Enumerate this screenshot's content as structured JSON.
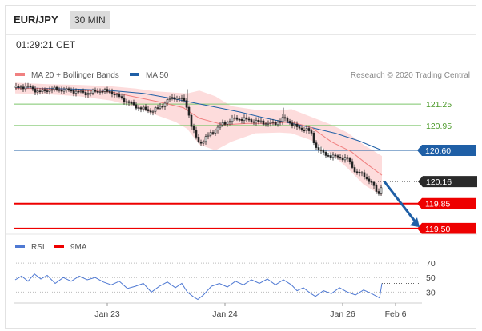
{
  "header": {
    "pair": "EUR/JPY",
    "timeframe": "30 MIN"
  },
  "time": "01:29:21 CET",
  "colors": {
    "ma20": "#f08080",
    "ma50": "#1f5fa6",
    "band": "#fdd8d8",
    "greenLine": "#7cc56a",
    "greenText": "#4c9a2a",
    "support": "#ee0000",
    "arrow": "#1f5fa6",
    "candle": "#222222",
    "rsi": "#4f79d3",
    "ma9": "#ee0000"
  },
  "chart_data": [
    {
      "type": "line",
      "title": "",
      "legend": [
        {
          "name": "MA 20 + Bollinger Bands",
          "color": "#f08080"
        },
        {
          "name": "MA 50",
          "color": "#1f5fa6"
        }
      ],
      "source": "Research © 2020 Trading Central",
      "ylim": [
        119.42,
        121.6
      ],
      "levels": [
        {
          "value": 121.25,
          "label": "121.25",
          "style": "green-line"
        },
        {
          "value": 120.95,
          "label": "120.95",
          "style": "green-line"
        },
        {
          "value": 120.6,
          "label": "120.60",
          "style": "pivot"
        },
        {
          "value": 120.16,
          "label": "120.16",
          "style": "last-price"
        },
        {
          "value": 119.85,
          "label": "119.85",
          "style": "support"
        },
        {
          "value": 119.5,
          "label": "119.50",
          "style": "support"
        }
      ],
      "series": [
        {
          "name": "Price",
          "points": [
            [
              0,
              121.48
            ],
            [
              15,
              121.5
            ],
            [
              30,
              121.42
            ],
            [
              45,
              121.46
            ],
            [
              60,
              121.45
            ],
            [
              75,
              121.43
            ],
            [
              90,
              121.4
            ],
            [
              105,
              121.44
            ],
            [
              120,
              121.42
            ],
            [
              130,
              121.35
            ],
            [
              140,
              121.28
            ],
            [
              150,
              121.22
            ],
            [
              160,
              121.18
            ],
            [
              170,
              121.15
            ],
            [
              180,
              121.2
            ],
            [
              190,
              121.3
            ],
            [
              200,
              121.35
            ],
            [
              210,
              121.31
            ],
            [
              215,
              121.2
            ],
            [
              220,
              120.95
            ],
            [
              225,
              120.8
            ],
            [
              230,
              120.7
            ],
            [
              235,
              120.74
            ],
            [
              245,
              120.85
            ],
            [
              260,
              120.98
            ],
            [
              275,
              121.05
            ],
            [
              290,
              121.03
            ],
            [
              305,
              121.0
            ],
            [
              315,
              120.98
            ],
            [
              325,
              120.98
            ],
            [
              335,
              121.05
            ],
            [
              345,
              120.98
            ],
            [
              355,
              120.9
            ],
            [
              365,
              120.9
            ],
            [
              370,
              120.82
            ],
            [
              375,
              120.66
            ],
            [
              385,
              120.55
            ],
            [
              395,
              120.52
            ],
            [
              405,
              120.5
            ],
            [
              415,
              120.48
            ],
            [
              425,
              120.3
            ],
            [
              435,
              120.25
            ],
            [
              445,
              120.14
            ],
            [
              450,
              120.04
            ],
            [
              455,
              119.98
            ],
            [
              458,
              120.16
            ]
          ]
        },
        {
          "name": "MA 20",
          "points": [
            [
              0,
              121.47
            ],
            [
              30,
              121.47
            ],
            [
              60,
              121.45
            ],
            [
              90,
              121.44
            ],
            [
              120,
              121.42
            ],
            [
              150,
              121.35
            ],
            [
              180,
              121.28
            ],
            [
              210,
              121.2
            ],
            [
              230,
              121.05
            ],
            [
              260,
              120.96
            ],
            [
              290,
              120.98
            ],
            [
              320,
              120.98
            ],
            [
              345,
              121.0
            ],
            [
              370,
              120.92
            ],
            [
              395,
              120.72
            ],
            [
              420,
              120.58
            ],
            [
              440,
              120.4
            ],
            [
              458,
              120.25
            ]
          ]
        },
        {
          "name": "MA 50",
          "points": [
            [
              0,
              121.48
            ],
            [
              40,
              121.47
            ],
            [
              80,
              121.46
            ],
            [
              120,
              121.44
            ],
            [
              160,
              121.4
            ],
            [
              200,
              121.32
            ],
            [
              240,
              121.23
            ],
            [
              280,
              121.14
            ],
            [
              310,
              121.06
            ],
            [
              340,
              120.99
            ],
            [
              370,
              120.92
            ],
            [
              400,
              120.84
            ],
            [
              430,
              120.73
            ],
            [
              458,
              120.6
            ]
          ]
        }
      ],
      "bollinger": {
        "upper": [
          [
            0,
            121.55
          ],
          [
            40,
            121.53
          ],
          [
            80,
            121.52
          ],
          [
            120,
            121.5
          ],
          [
            150,
            121.47
          ],
          [
            175,
            121.43
          ],
          [
            200,
            121.41
          ],
          [
            215,
            121.4
          ],
          [
            230,
            121.44
          ],
          [
            250,
            121.36
          ],
          [
            270,
            121.22
          ],
          [
            300,
            121.17
          ],
          [
            330,
            121.16
          ],
          [
            345,
            121.18
          ],
          [
            370,
            121.07
          ],
          [
            395,
            120.96
          ],
          [
            415,
            120.85
          ],
          [
            435,
            120.68
          ],
          [
            458,
            120.52
          ]
        ],
        "lower": [
          [
            0,
            121.4
          ],
          [
            40,
            121.39
          ],
          [
            80,
            121.36
          ],
          [
            120,
            121.3
          ],
          [
            150,
            121.21
          ],
          [
            175,
            121.1
          ],
          [
            200,
            121.0
          ],
          [
            215,
            120.9
          ],
          [
            230,
            120.68
          ],
          [
            250,
            120.6
          ],
          [
            270,
            120.72
          ],
          [
            300,
            120.84
          ],
          [
            330,
            120.85
          ],
          [
            345,
            120.84
          ],
          [
            370,
            120.74
          ],
          [
            395,
            120.55
          ],
          [
            415,
            120.35
          ],
          [
            435,
            120.12
          ],
          [
            458,
            119.96
          ]
        ]
      },
      "projection": {
        "from": [
          461,
          120.16
        ],
        "to": [
          505,
          119.52
        ]
      }
    },
    {
      "type": "line",
      "legend": [
        {
          "name": "RSI",
          "color": "#4f79d3"
        },
        {
          "name": "9MA",
          "color": "#ee0000"
        }
      ],
      "ylim": [
        15,
        80
      ],
      "yticks": [
        70,
        50,
        30
      ],
      "series": [
        {
          "name": "RSI",
          "points": [
            [
              0,
              47
            ],
            [
              8,
              52
            ],
            [
              16,
              45
            ],
            [
              24,
              55
            ],
            [
              32,
              48
            ],
            [
              40,
              53
            ],
            [
              50,
              42
            ],
            [
              60,
              50
            ],
            [
              70,
              45
            ],
            [
              80,
              52
            ],
            [
              90,
              47
            ],
            [
              100,
              50
            ],
            [
              110,
              44
            ],
            [
              120,
              40
            ],
            [
              130,
              45
            ],
            [
              140,
              35
            ],
            [
              150,
              38
            ],
            [
              160,
              42
            ],
            [
              170,
              30
            ],
            [
              180,
              38
            ],
            [
              190,
              44
            ],
            [
              200,
              36
            ],
            [
              208,
              42
            ],
            [
              215,
              30
            ],
            [
              222,
              24
            ],
            [
              228,
              20
            ],
            [
              235,
              26
            ],
            [
              245,
              38
            ],
            [
              255,
              42
            ],
            [
              265,
              37
            ],
            [
              275,
              45
            ],
            [
              285,
              40
            ],
            [
              295,
              47
            ],
            [
              305,
              42
            ],
            [
              315,
              48
            ],
            [
              325,
              40
            ],
            [
              335,
              47
            ],
            [
              345,
              40
            ],
            [
              352,
              32
            ],
            [
              360,
              36
            ],
            [
              368,
              29
            ],
            [
              375,
              24
            ],
            [
              385,
              32
            ],
            [
              395,
              28
            ],
            [
              405,
              36
            ],
            [
              415,
              30
            ],
            [
              425,
              26
            ],
            [
              435,
              33
            ],
            [
              445,
              28
            ],
            [
              455,
              22
            ],
            [
              458,
              42
            ]
          ]
        }
      ],
      "last_value": 42
    }
  ],
  "x_axis": {
    "ticks": [
      {
        "label": "Jan 23",
        "x": 127
      },
      {
        "label": "Jan 24",
        "x": 274
      },
      {
        "label": "Jan 26",
        "x": 421
      },
      {
        "label": "Feb 6",
        "x": 487
      }
    ]
  }
}
